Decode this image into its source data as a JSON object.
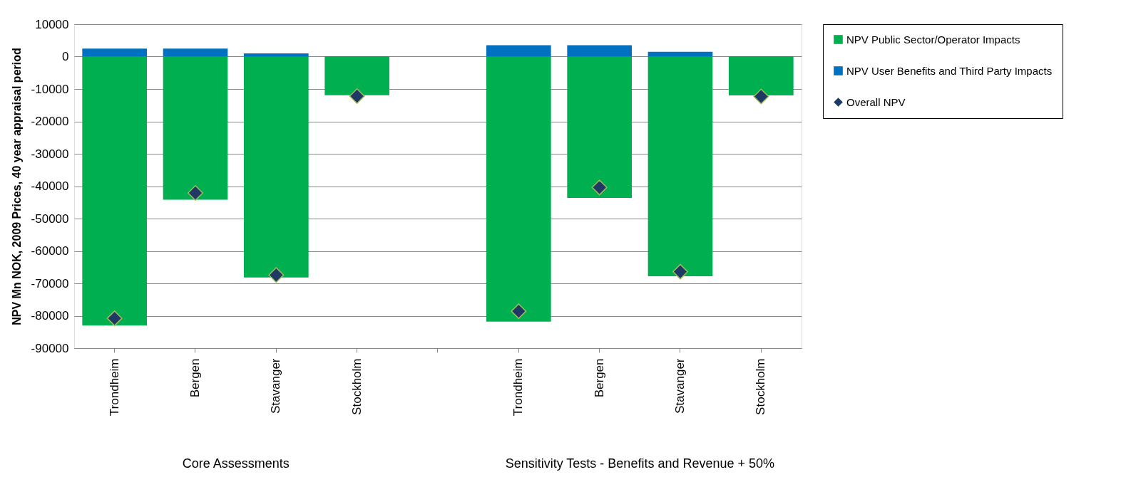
{
  "chart_data": {
    "type": "bar",
    "stacked": true,
    "ylabel": "NPV Mn NOK, 2009 Prices, 40 year appraisal  period",
    "categories": [
      "Trondheim",
      "Bergen",
      "Stavanger",
      "Stockholm",
      null,
      "Trondheim",
      "Bergen",
      "Stavanger",
      "Stockholm"
    ],
    "series": [
      {
        "name": "NPV Public Sector/Operator Impacts",
        "color": "#00b050",
        "values": [
          -83000,
          -44200,
          -68200,
          -11900,
          null,
          -81800,
          -43600,
          -67800,
          -12000
        ]
      },
      {
        "name": "NPV User Benefits and Third Party Impacts",
        "color": "#0070c0",
        "values": [
          2500,
          2500,
          1000,
          100,
          null,
          3500,
          3500,
          1500,
          100
        ]
      },
      {
        "name": "Overall NPV",
        "type": "scatter",
        "marker": "diamond",
        "color": "#1f3864",
        "values": [
          -80800,
          -42100,
          -67400,
          -12200,
          null,
          -78600,
          -40400,
          -66400,
          -12300
        ]
      }
    ],
    "ylim": [
      -90000,
      10000
    ],
    "yticks": [
      -90000,
      -80000,
      -70000,
      -60000,
      -50000,
      -40000,
      -30000,
      -20000,
      -10000,
      0,
      10000
    ],
    "grid": "y",
    "legend": "top right",
    "annotations": [
      "Core Assessments",
      "Sensitivity Tests - Benefits and Revenue + 50%"
    ]
  }
}
